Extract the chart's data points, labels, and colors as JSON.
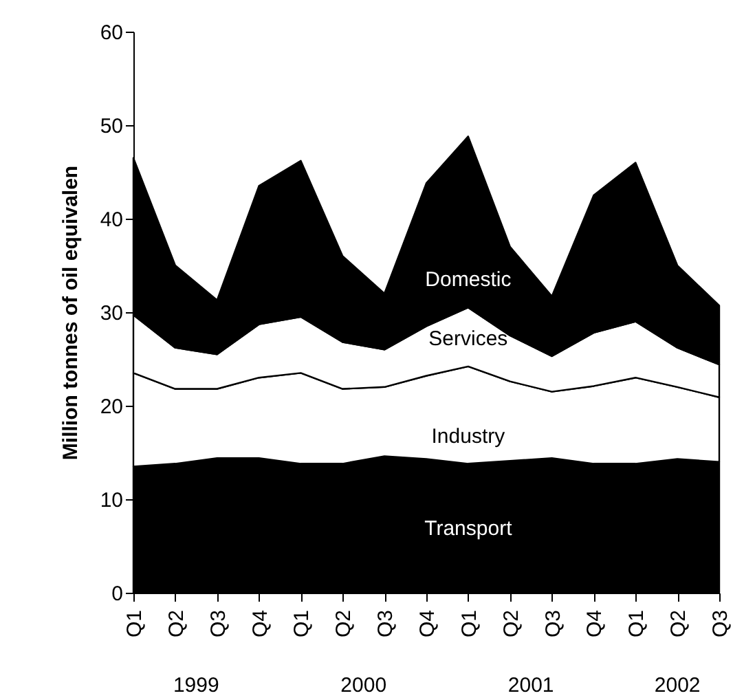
{
  "chart_data": {
    "type": "area",
    "stacked": true,
    "ylabel": "Million tonnes of oil equivalen",
    "categories": [
      "Q1",
      "Q2",
      "Q3",
      "Q4",
      "Q1",
      "Q2",
      "Q3",
      "Q4",
      "Q1",
      "Q2",
      "Q3",
      "Q4",
      "Q1",
      "Q2",
      "Q3"
    ],
    "ylim": [
      0,
      60
    ],
    "yticks": [
      0,
      10,
      20,
      30,
      40,
      50,
      60
    ],
    "series": [
      {
        "name": "Transport",
        "color": "#000000",
        "values": [
          13.5,
          13.8,
          14.4,
          14.4,
          13.8,
          13.8,
          14.6,
          14.3,
          13.8,
          14.1,
          14.4,
          13.8,
          13.8,
          14.3,
          14.0
        ]
      },
      {
        "name": "Industry",
        "color": "#ffffff",
        "values": [
          10.0,
          8.0,
          7.4,
          8.6,
          9.7,
          8.0,
          7.4,
          8.9,
          10.4,
          8.5,
          7.1,
          8.3,
          9.2,
          7.7,
          6.9
        ]
      },
      {
        "name": "Services",
        "color": "#ffffff",
        "values": [
          6.2,
          4.4,
          3.7,
          5.7,
          6.0,
          5.0,
          4.0,
          5.3,
          6.3,
          4.9,
          3.8,
          5.7,
          6.0,
          4.2,
          3.5
        ]
      },
      {
        "name": "Domestic",
        "color": "#000000",
        "values": [
          16.8,
          8.8,
          5.8,
          14.8,
          16.7,
          9.2,
          6.0,
          15.3,
          18.3,
          9.5,
          6.4,
          14.7,
          17.0,
          8.8,
          6.3
        ]
      }
    ],
    "annotations": [
      "1999",
      "2000",
      "2001",
      "2002"
    ]
  }
}
